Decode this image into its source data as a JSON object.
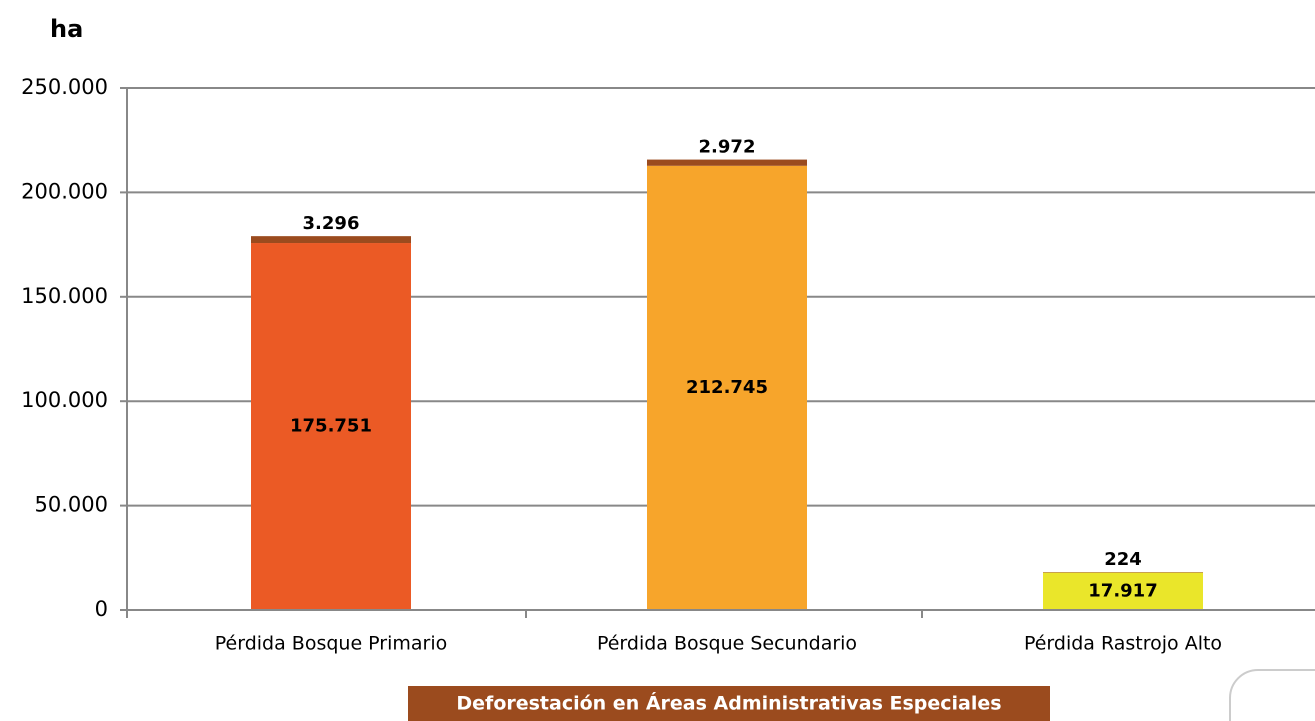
{
  "chart_data": {
    "type": "stacked_bar",
    "ylabel": "ha",
    "categories": [
      "Pérdida  Bosque Primario",
      "Pérdida  Bosque Secundario",
      "Pérdida  Rastrojo Alto"
    ],
    "series": [
      {
        "colors": [
          "#eb5a25",
          "#f7a52b",
          "#eae62a"
        ],
        "values": [
          175751,
          212745,
          17917
        ],
        "value_labels": [
          "175.751",
          "212.745",
          "17.917"
        ]
      },
      {
        "name": "Deforestación en Áreas Administrativas Especiales",
        "color": "#9b4b1e",
        "values": [
          3296,
          2972,
          224
        ],
        "value_labels": [
          "3.296",
          "2.972",
          "224"
        ]
      }
    ],
    "ylim": [
      0,
      250000
    ],
    "yticks": [
      0,
      {
        "value": 50000,
        "label": "50.000"
      },
      {
        "value": 100000,
        "label": "100.000"
      },
      {
        "value": 150000,
        "label": "150.000"
      },
      {
        "value": 200000,
        "label": "200.000"
      },
      {
        "value": 250000,
        "label": "250.000"
      }
    ],
    "grid": true,
    "legend": "bottom"
  }
}
